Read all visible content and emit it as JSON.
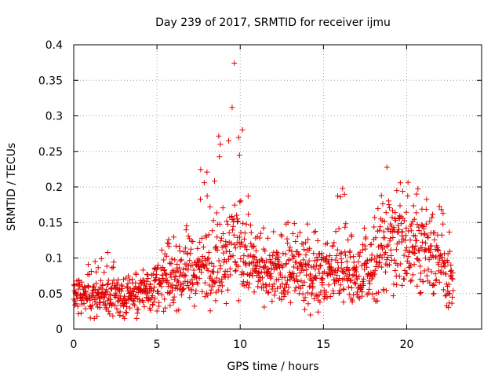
{
  "chart_data": {
    "type": "scatter",
    "title": "Day 239 of 2017, SRMTID for receiver ijmu",
    "xlabel": "GPS time / hours",
    "ylabel": "SRMTID / TECUs",
    "xlim": [
      0,
      24.5
    ],
    "ylim": [
      0,
      0.4
    ],
    "x_ticks": [
      0,
      5,
      10,
      15,
      20
    ],
    "x_tick_labels": [
      "0",
      "5",
      "10",
      "15",
      "20"
    ],
    "y_ticks": [
      0,
      0.05,
      0.1,
      0.15,
      0.2,
      0.25,
      0.3,
      0.35,
      0.4
    ],
    "y_tick_labels": [
      "0",
      "0.05",
      "0.1",
      "0.15",
      "0.2",
      "0.25",
      "0.3",
      "0.35",
      "0.4"
    ],
    "grid": true,
    "marker": "+",
    "series_color": "#e00000",
    "data_extent_hours": [
      0,
      22.8
    ],
    "profile": [
      {
        "t": 0.0,
        "median": 0.045,
        "max": 0.075
      },
      {
        "t": 1.0,
        "median": 0.045,
        "max": 0.095
      },
      {
        "t": 2.0,
        "median": 0.045,
        "max": 0.115
      },
      {
        "t": 3.0,
        "median": 0.045,
        "max": 0.075
      },
      {
        "t": 4.0,
        "median": 0.05,
        "max": 0.085
      },
      {
        "t": 5.0,
        "median": 0.06,
        "max": 0.11
      },
      {
        "t": 6.0,
        "median": 0.07,
        "max": 0.14
      },
      {
        "t": 7.0,
        "median": 0.075,
        "max": 0.16
      },
      {
        "t": 8.0,
        "median": 0.09,
        "max": 0.27
      },
      {
        "t": 9.0,
        "median": 0.1,
        "max": 0.28
      },
      {
        "t": 9.6,
        "median": 0.12,
        "max": 0.395
      },
      {
        "t": 10.5,
        "median": 0.1,
        "max": 0.22
      },
      {
        "t": 11.0,
        "median": 0.08,
        "max": 0.15
      },
      {
        "t": 12.0,
        "median": 0.07,
        "max": 0.14
      },
      {
        "t": 13.5,
        "median": 0.08,
        "max": 0.16
      },
      {
        "t": 15.0,
        "median": 0.075,
        "max": 0.13
      },
      {
        "t": 16.1,
        "median": 0.08,
        "max": 0.205
      },
      {
        "t": 17.0,
        "median": 0.07,
        "max": 0.14
      },
      {
        "t": 18.0,
        "median": 0.075,
        "max": 0.15
      },
      {
        "t": 18.9,
        "median": 0.13,
        "max": 0.25
      },
      {
        "t": 19.5,
        "median": 0.11,
        "max": 0.22
      },
      {
        "t": 20.5,
        "median": 0.12,
        "max": 0.23
      },
      {
        "t": 21.5,
        "median": 0.09,
        "max": 0.17
      },
      {
        "t": 22.2,
        "median": 0.09,
        "max": 0.195
      },
      {
        "t": 22.8,
        "median": 0.06,
        "max": 0.1
      }
    ],
    "point_count": 1400
  }
}
